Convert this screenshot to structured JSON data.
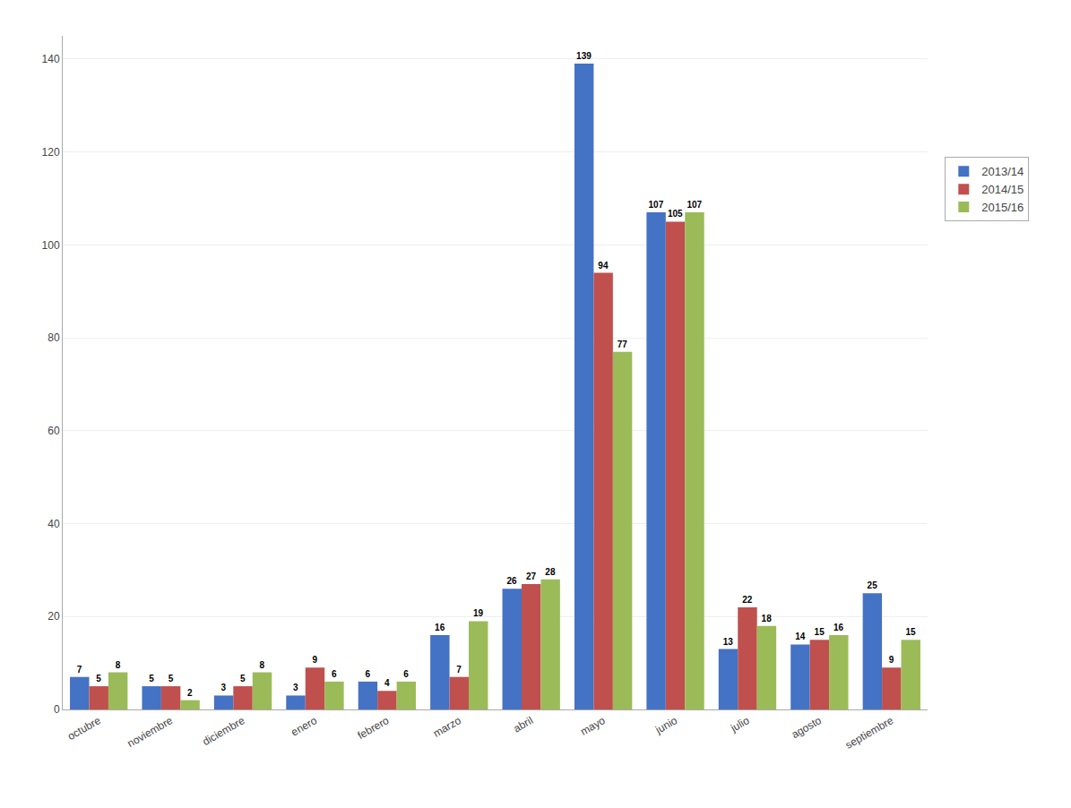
{
  "chart_data": {
    "type": "bar",
    "categories": [
      "octubre",
      "noviembre",
      "diciembre",
      "enero",
      "febrero",
      "marzo",
      "abril",
      "mayo",
      "junio",
      "julio",
      "agosto",
      "septiembre"
    ],
    "series": [
      {
        "name": "2013/14",
        "color": "#4472C4",
        "values": [
          7,
          5,
          3,
          3,
          6,
          16,
          26,
          139,
          107,
          13,
          14,
          25
        ]
      },
      {
        "name": "2014/15",
        "color": "#C0504D",
        "values": [
          5,
          5,
          5,
          9,
          4,
          7,
          27,
          94,
          105,
          22,
          15,
          9
        ]
      },
      {
        "name": "2015/16",
        "color": "#9BBB59",
        "values": [
          8,
          2,
          8,
          6,
          6,
          19,
          28,
          77,
          107,
          18,
          16,
          15
        ]
      }
    ],
    "ylim": [
      0,
      145
    ],
    "yticks": [
      0,
      20,
      40,
      60,
      80,
      100,
      120,
      140
    ],
    "grid": true,
    "legend": "right",
    "data_labels": true
  }
}
